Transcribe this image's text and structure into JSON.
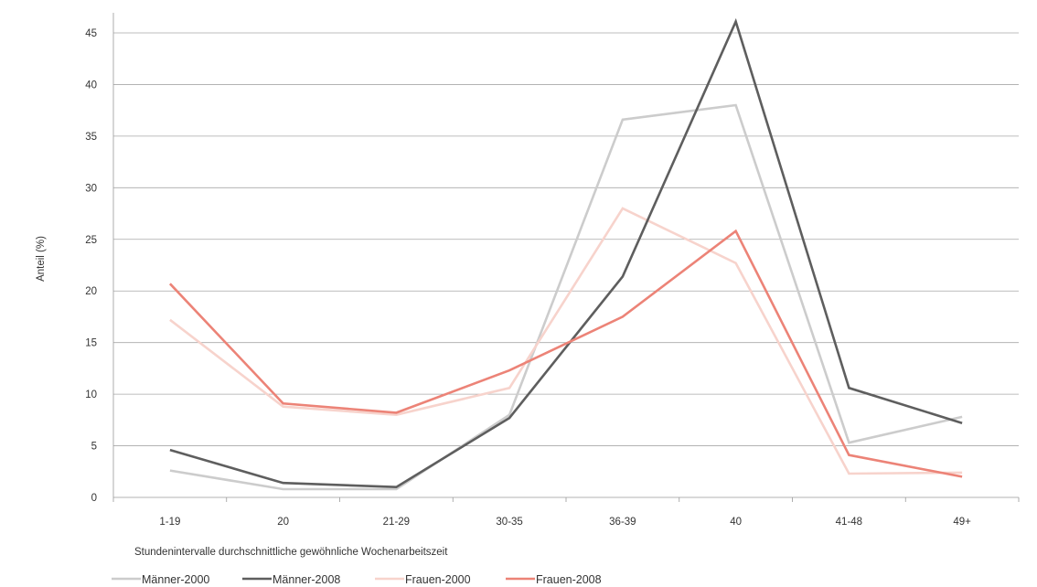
{
  "chart_data": {
    "type": "line",
    "title": "",
    "xlabel": "Stundenintervalle durchschnittliche gewöhnliche Wochenarbeitszeit",
    "ylabel": "Anteil (%)",
    "categories": [
      "1-19",
      "20",
      "21-29",
      "30-35",
      "36-39",
      "40",
      "41-48",
      "49+"
    ],
    "ylim": [
      0,
      45
    ],
    "yticks": [
      0,
      5,
      10,
      15,
      20,
      25,
      30,
      35,
      40,
      45
    ],
    "grid": "horizontal",
    "legend_position": "bottom-left",
    "series": [
      {
        "name": "Männer-2000",
        "color": "#cccccc",
        "values": [
          2.6,
          0.8,
          0.8,
          8.0,
          36.6,
          38.0,
          5.3,
          7.8
        ]
      },
      {
        "name": "Männer-2008",
        "color": "#5e5e5e",
        "values": [
          4.6,
          1.4,
          1.0,
          7.7,
          21.4,
          46.1,
          10.6,
          7.2
        ]
      },
      {
        "name": "Frauen-2000",
        "color": "#f7d3cc",
        "values": [
          17.2,
          8.8,
          8.0,
          10.6,
          28.0,
          22.7,
          2.3,
          2.4
        ]
      },
      {
        "name": "Frauen-2008",
        "color": "#ec8377",
        "values": [
          20.7,
          9.1,
          8.2,
          12.3,
          17.5,
          25.8,
          4.1,
          2.0
        ]
      }
    ]
  }
}
